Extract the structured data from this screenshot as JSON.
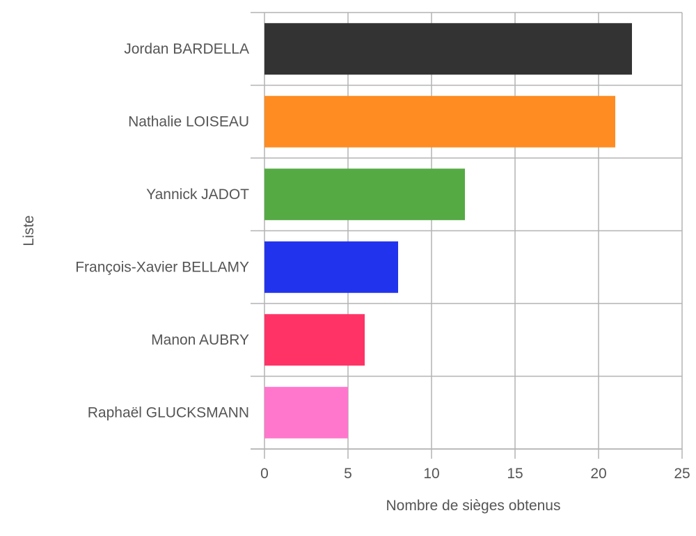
{
  "chart_data": {
    "type": "bar",
    "orientation": "horizontal",
    "categories": [
      "Jordan BARDELLA",
      "Nathalie LOISEAU",
      "Yannick JADOT",
      "François-Xavier BELLAMY",
      "Manon AUBRY",
      "Raphaël GLUCKSMANN"
    ],
    "values": [
      22,
      21,
      12,
      8,
      6,
      5
    ],
    "colors": [
      "#333333",
      "#ff8c22",
      "#55aa44",
      "#2233ee",
      "#ff3366",
      "#ff77cc"
    ],
    "xlabel": "Nombre de sièges obtenus",
    "ylabel": "Liste",
    "xlim": [
      0,
      25
    ],
    "xticks": [
      0,
      5,
      10,
      15,
      20,
      25
    ],
    "grid": true,
    "legend": "none"
  }
}
